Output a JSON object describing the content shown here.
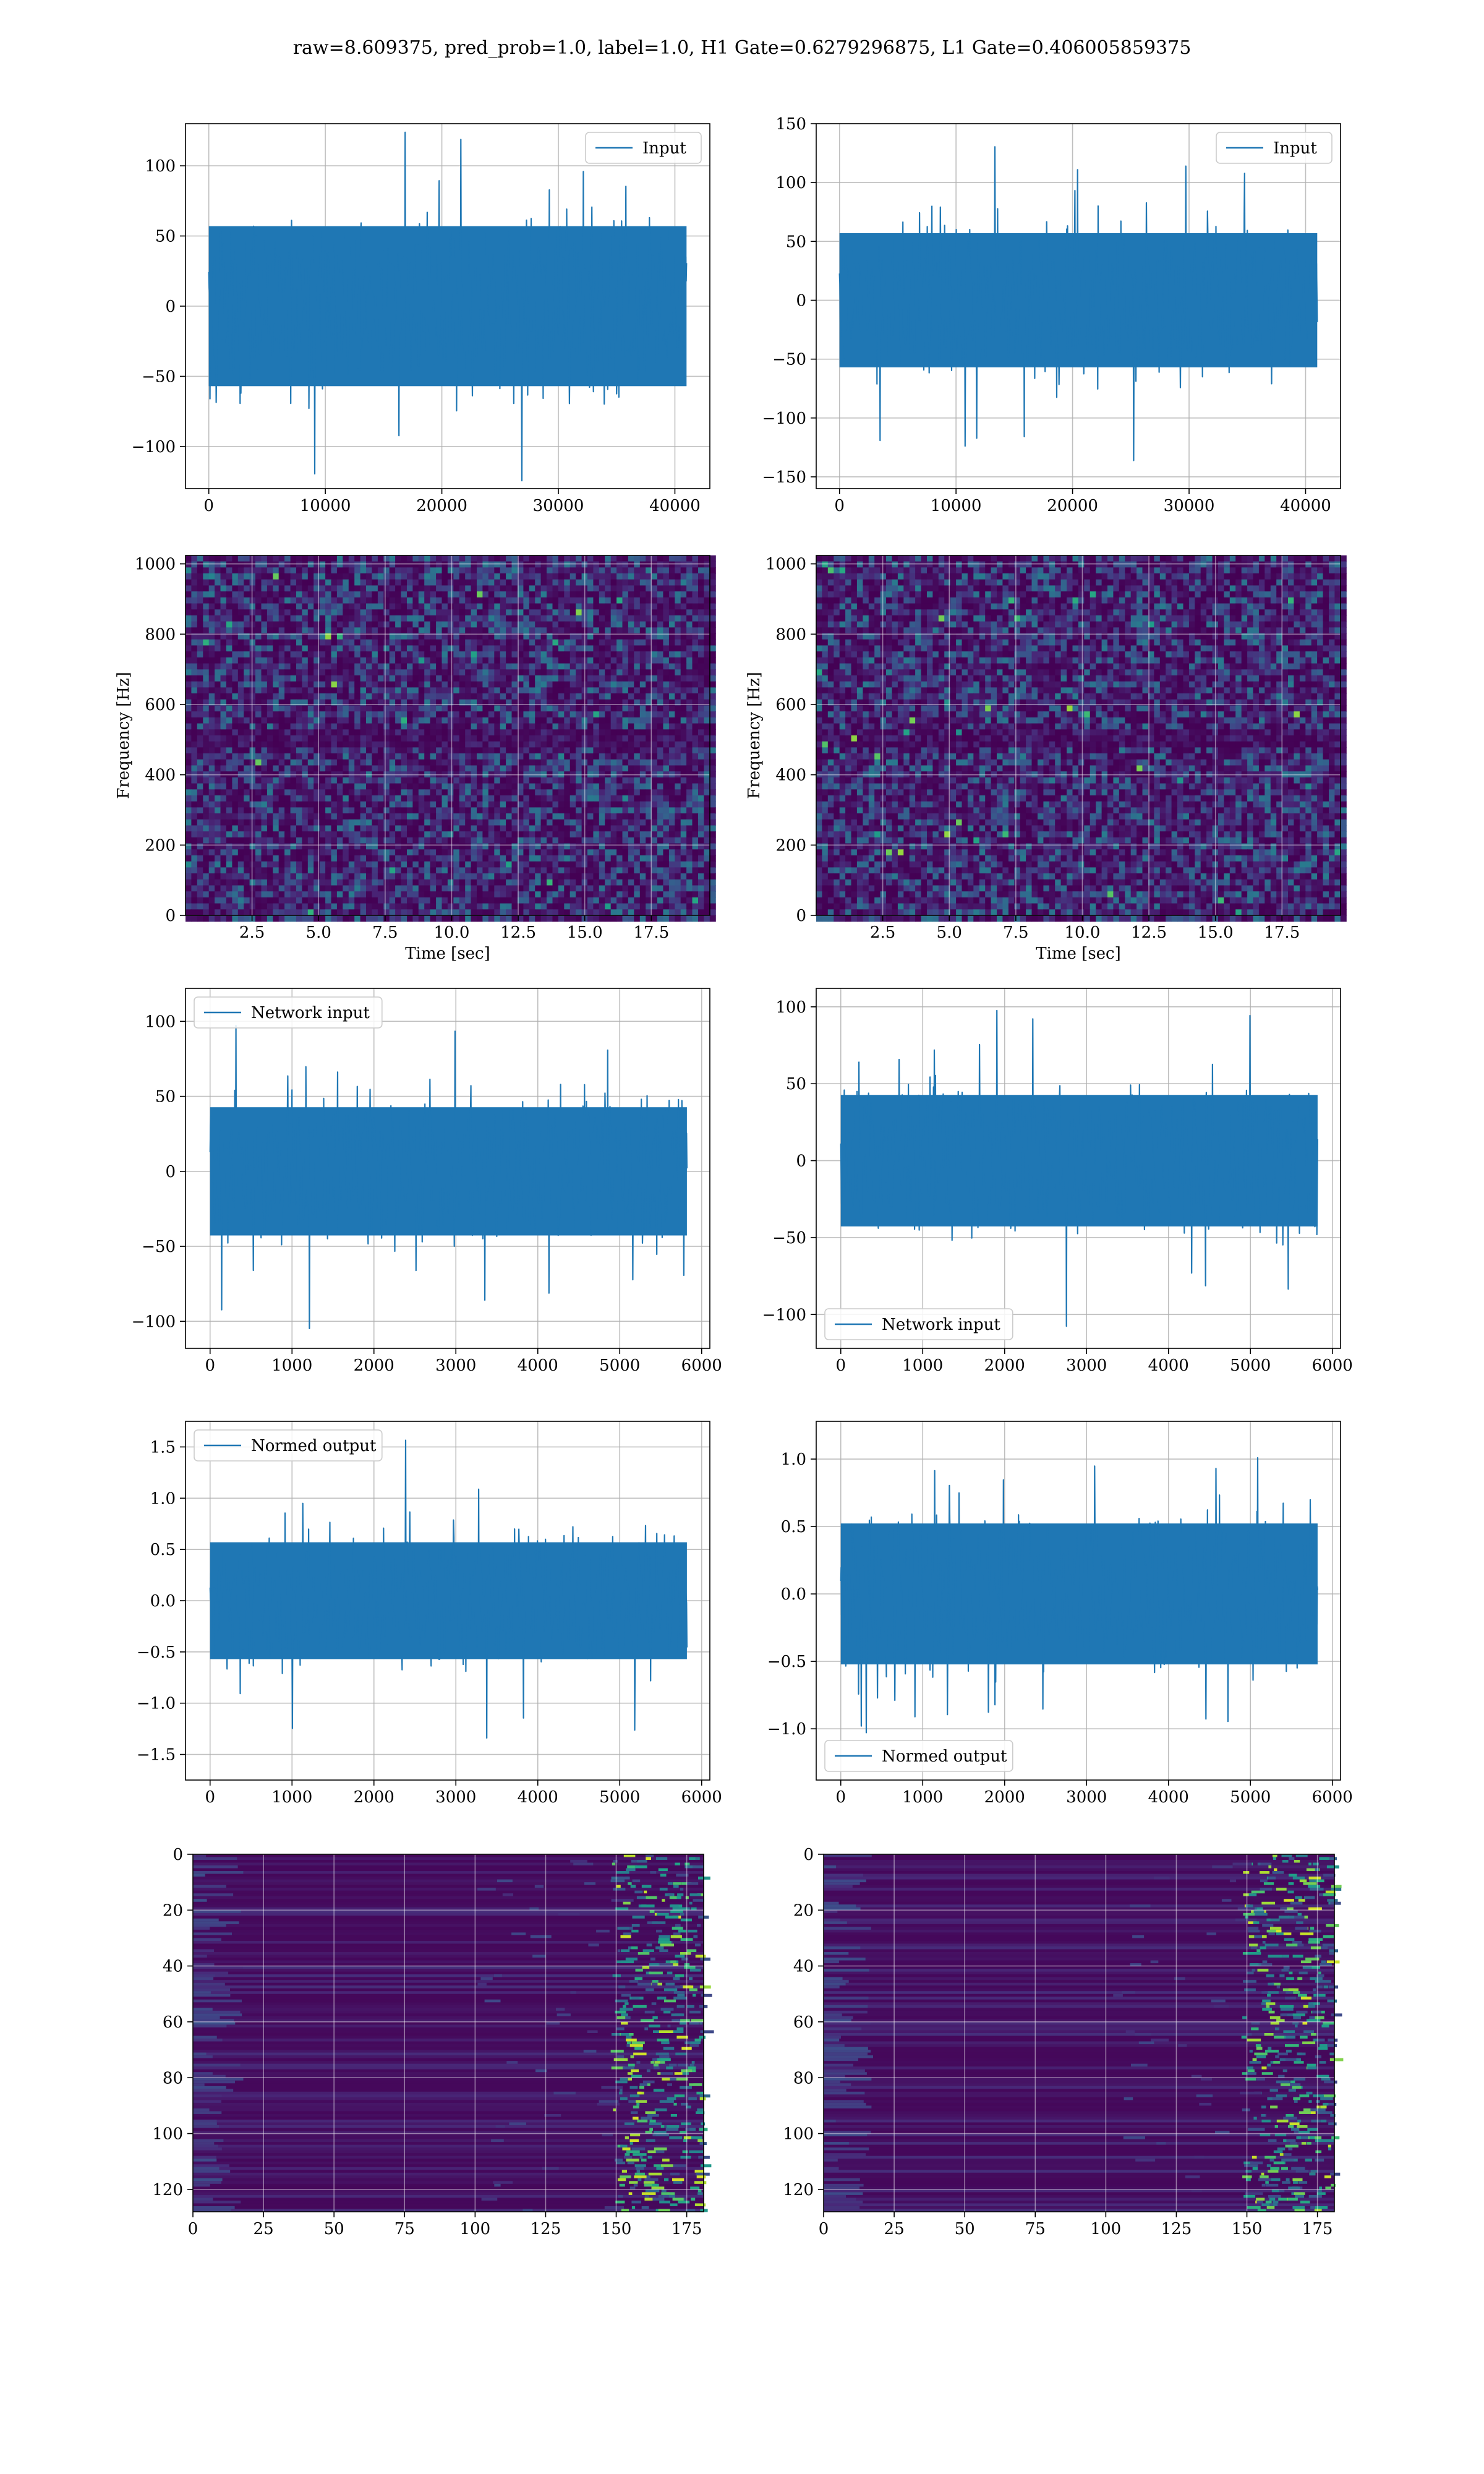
{
  "figure": {
    "title": "raw=8.609375, pred_prob=1.0, label=1.0, H1 Gate=0.6279296875, L1 Gate=0.406005859375",
    "colors": {
      "line": "#1f77b4",
      "grid": "#b0b0b0",
      "axes": "#000000",
      "viridis_dark": "#440154"
    }
  },
  "chart_data": [
    {
      "id": "h1-input",
      "type": "line",
      "series": [
        {
          "name": "Input",
          "color": "#1f77b4"
        }
      ],
      "legend": "top-right",
      "x": [
        0,
        41000
      ],
      "xlim": [
        -2000,
        43000
      ],
      "ylim": [
        -130,
        130
      ],
      "xticks": [
        0,
        10000,
        20000,
        30000,
        40000
      ],
      "yticks": [
        -100,
        -50,
        0,
        50,
        100
      ],
      "core_amp": 60,
      "peak_amp": 125,
      "grid": true,
      "xlabel": "",
      "ylabel": ""
    },
    {
      "id": "l1-input",
      "type": "line",
      "series": [
        {
          "name": "Input",
          "color": "#1f77b4"
        }
      ],
      "legend": "top-right",
      "x": [
        0,
        41000
      ],
      "xlim": [
        -2000,
        43000
      ],
      "ylim": [
        -160,
        150
      ],
      "xticks": [
        0,
        10000,
        20000,
        30000,
        40000
      ],
      "yticks": [
        -150,
        -100,
        -50,
        0,
        50,
        100,
        150
      ],
      "core_amp": 60,
      "peak_amp": 145,
      "grid": true,
      "xlabel": "",
      "ylabel": ""
    },
    {
      "id": "h1-spectrogram",
      "type": "heatmap",
      "xlim": [
        0,
        19.7
      ],
      "ylim": [
        0,
        1024
      ],
      "xticks": [
        2.5,
        5.0,
        7.5,
        10.0,
        12.5,
        15.0,
        17.5
      ],
      "yticks": [
        0,
        200,
        400,
        600,
        800,
        1000
      ],
      "xlabel": "Time [sec]",
      "ylabel": "Frequency [Hz]",
      "grid": true,
      "colormap": "viridis"
    },
    {
      "id": "l1-spectrogram",
      "type": "heatmap",
      "xlim": [
        0,
        19.7
      ],
      "ylim": [
        0,
        1024
      ],
      "xticks": [
        2.5,
        5.0,
        7.5,
        10.0,
        12.5,
        15.0,
        17.5
      ],
      "yticks": [
        0,
        200,
        400,
        600,
        800,
        1000
      ],
      "xlabel": "Time [sec]",
      "ylabel": "Frequency [Hz]",
      "grid": true,
      "colormap": "viridis"
    },
    {
      "id": "h1-network-input",
      "type": "line",
      "series": [
        {
          "name": "Network input",
          "color": "#1f77b4"
        }
      ],
      "legend": "top-left",
      "x": [
        0,
        5820
      ],
      "xlim": [
        -300,
        6100
      ],
      "ylim": [
        -118,
        122
      ],
      "xticks": [
        0,
        1000,
        2000,
        3000,
        4000,
        5000,
        6000
      ],
      "yticks": [
        -100,
        -50,
        0,
        50,
        100
      ],
      "core_amp": 45,
      "peak_amp": 110,
      "grid": true,
      "xlabel": "",
      "ylabel": ""
    },
    {
      "id": "l1-network-input",
      "type": "line",
      "series": [
        {
          "name": "Network input",
          "color": "#1f77b4"
        }
      ],
      "legend": "bottom-left",
      "x": [
        0,
        5820
      ],
      "xlim": [
        -300,
        6100
      ],
      "ylim": [
        -122,
        112
      ],
      "xticks": [
        0,
        1000,
        2000,
        3000,
        4000,
        5000,
        6000
      ],
      "yticks": [
        -100,
        -50,
        0,
        50,
        100
      ],
      "core_amp": 45,
      "peak_amp": 108,
      "grid": true,
      "xlabel": "",
      "ylabel": ""
    },
    {
      "id": "h1-normed-output",
      "type": "line",
      "series": [
        {
          "name": "Normed output",
          "color": "#1f77b4"
        }
      ],
      "legend": "top-left",
      "x": [
        0,
        5820
      ],
      "xlim": [
        -300,
        6100
      ],
      "ylim": [
        -1.75,
        1.75
      ],
      "xticks": [
        0,
        1000,
        2000,
        3000,
        4000,
        5000,
        6000
      ],
      "yticks": [
        -1.5,
        -1.0,
        -0.5,
        0.0,
        0.5,
        1.0,
        1.5
      ],
      "core_amp": 0.6,
      "peak_amp": 1.65,
      "grid": true,
      "xlabel": "",
      "ylabel": ""
    },
    {
      "id": "l1-normed-output",
      "type": "line",
      "series": [
        {
          "name": "Normed output",
          "color": "#1f77b4"
        }
      ],
      "legend": "bottom-left",
      "x": [
        0,
        5820
      ],
      "xlim": [
        -300,
        6100
      ],
      "ylim": [
        -1.38,
        1.28
      ],
      "xticks": [
        0,
        1000,
        2000,
        3000,
        4000,
        5000,
        6000
      ],
      "yticks": [
        -1.0,
        -0.5,
        0.0,
        0.5,
        1.0
      ],
      "core_amp": 0.55,
      "peak_amp": 1.2,
      "grid": true,
      "xlabel": "",
      "ylabel": ""
    },
    {
      "id": "h1-feature-map",
      "type": "heatmap",
      "xlim": [
        0,
        181
      ],
      "ylim": [
        128,
        0
      ],
      "xticks": [
        0,
        25,
        50,
        75,
        100,
        125,
        150,
        175
      ],
      "yticks": [
        0,
        20,
        40,
        60,
        80,
        100,
        120
      ],
      "xlabel": "",
      "ylabel": "",
      "grid": true,
      "colormap": "viridis"
    },
    {
      "id": "l1-feature-map",
      "type": "heatmap",
      "xlim": [
        0,
        181
      ],
      "ylim": [
        128,
        0
      ],
      "xticks": [
        0,
        25,
        50,
        75,
        100,
        125,
        150,
        175
      ],
      "yticks": [
        0,
        20,
        40,
        60,
        80,
        100,
        120
      ],
      "xlabel": "",
      "ylabel": "",
      "grid": true,
      "colormap": "viridis"
    }
  ]
}
